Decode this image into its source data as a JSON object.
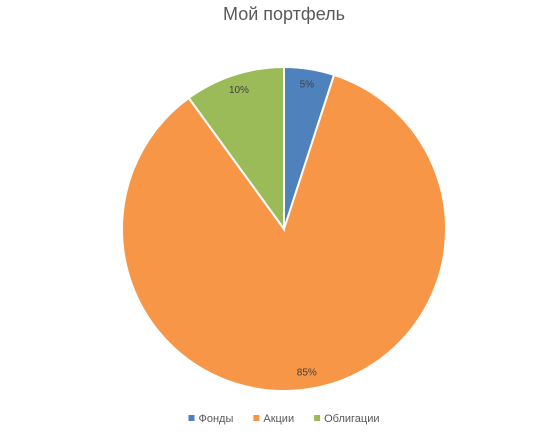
{
  "chart_data": {
    "type": "pie",
    "title": "Мой портфель",
    "categories": [
      "Фонды",
      "Акции",
      "Облигации"
    ],
    "values": [
      5,
      85,
      10
    ],
    "value_labels": [
      "5%",
      "85%",
      "10%"
    ],
    "colors": [
      "#4f81bd",
      "#f79646",
      "#9bbb59"
    ],
    "legend": "bottom"
  }
}
